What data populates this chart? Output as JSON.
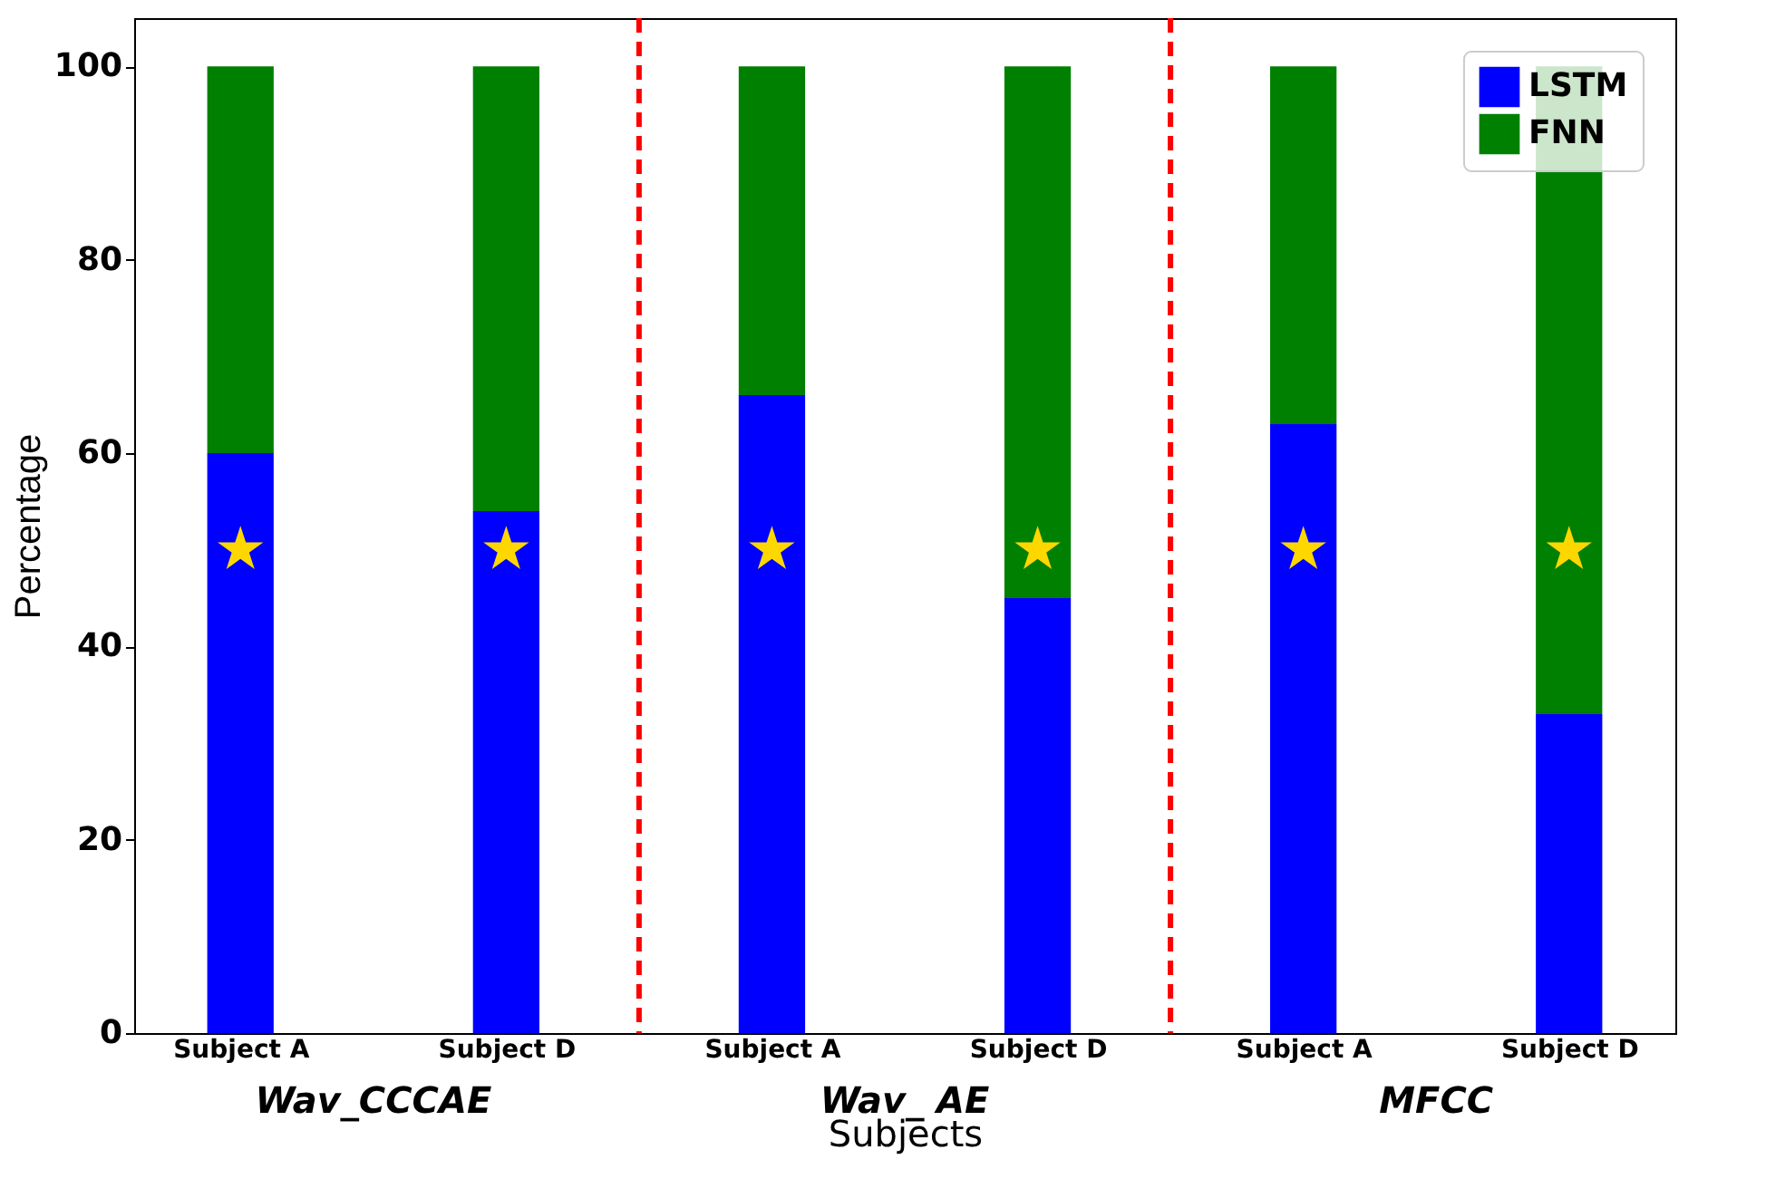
{
  "chart_data": {
    "type": "bar",
    "xlabel": "Subjects",
    "ylabel": "Percentage",
    "stacked": true,
    "categories": [
      "Subject A",
      "Subject D",
      "Subject A",
      "Subject D",
      "Subject A",
      "Subject D"
    ],
    "series": [
      {
        "name": "LSTM",
        "color": "#0000ff",
        "values": [
          60,
          54,
          66,
          45,
          63,
          33
        ]
      },
      {
        "name": "FNN",
        "color": "#008000",
        "values": [
          40,
          46,
          34,
          55,
          37,
          67
        ]
      },
      {
        "type": "scatter",
        "color": "#ffd700",
        "values": [
          50,
          50,
          50,
          50,
          50,
          50
        ]
      }
    ],
    "ylim": [
      0,
      105
    ],
    "yticks": [
      0,
      20,
      40,
      60,
      80,
      100
    ],
    "grid": false,
    "legend": "top right",
    "annotations": [
      "Wav_CCCAE",
      "Wav_ AE",
      "MFCC"
    ]
  }
}
